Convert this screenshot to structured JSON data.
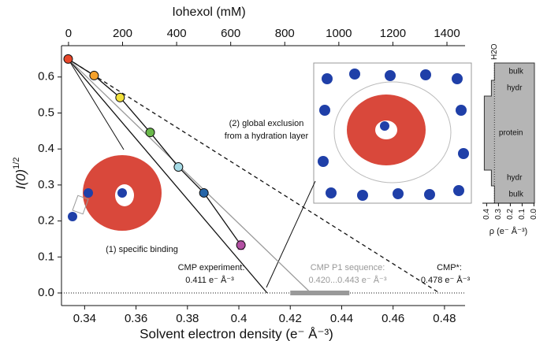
{
  "chart_data": {
    "type": "scatter",
    "xlabel": "Solvent electron density (e⁻ Å⁻³)",
    "ylabel": "I(0)",
    "ylabel_sup": "1/2",
    "x2label": "Iohexol (mM)",
    "xlim": [
      0.331,
      0.488
    ],
    "xticks": [
      0.34,
      0.36,
      0.38,
      0.4,
      0.42,
      0.44,
      0.46,
      0.48
    ],
    "x2lim": [
      -26,
      1467
    ],
    "x2ticks": [
      0,
      200,
      400,
      600,
      800,
      1000,
      1200,
      1400
    ],
    "ylim": [
      -0.035,
      0.687
    ],
    "yticks": [
      {
        "value": 0,
        "label": "0.0"
      },
      0.1,
      0.2,
      0.3,
      0.4,
      0.5,
      0.6
    ],
    "x": [
      0.3336,
      0.3437,
      0.3538,
      0.3655,
      0.3765,
      0.3864,
      0.4008
    ],
    "values": [
      0.65,
      0.604,
      0.543,
      0.446,
      0.35,
      0.278,
      0.133
    ],
    "errors": [
      null,
      null,
      null,
      null,
      null,
      null,
      0.012
    ],
    "colors": [
      "#e8472a",
      "#f5a12a",
      "#f1e03a",
      "#6ab84a",
      "#a6dbe6",
      "#2565a8",
      "#b34fa3"
    ],
    "fits": [
      {
        "x": [
          0.3336,
          0.411
        ],
        "y": [
          0.65,
          0
        ],
        "color": "#111",
        "dashed": false
      },
      {
        "x": [
          0.3336,
          0.428
        ],
        "y": [
          0.65,
          0
        ],
        "color": "#999",
        "dashed": false
      },
      {
        "x": [
          0.3336,
          0.478
        ],
        "y": [
          0.65,
          0
        ],
        "color": "#111",
        "dashed": true
      }
    ],
    "p1_range": [
      0.42,
      0.443
    ],
    "annotations": {
      "experiment": [
        "CMP experiment:",
        "0.411 e⁻ Å⁻³"
      ],
      "p1": [
        "CMP P1 sequence:",
        "0.420...0.443 e⁻ Å⁻³"
      ],
      "star": [
        "CMP*:",
        "0.478 e⁻ Å⁻³"
      ],
      "binding": "(1) specific binding",
      "exclusion": [
        "(2) global exclusion",
        "from a hydration layer"
      ]
    },
    "profile": {
      "title": "H2O",
      "xlabel": "ρ (e⁻ Å⁻³)",
      "xlim": [
        0.436,
        -0.004
      ],
      "xticks": [
        0.4,
        0.3,
        0.2,
        0.1,
        {
          "value": 0,
          "label": "0.0"
        }
      ],
      "regions": [
        "bulk",
        "hydr",
        "protein",
        "hydr",
        "bulk"
      ],
      "rho": [
        0.334,
        0.36,
        0.42,
        0.36,
        0.334
      ]
    }
  }
}
